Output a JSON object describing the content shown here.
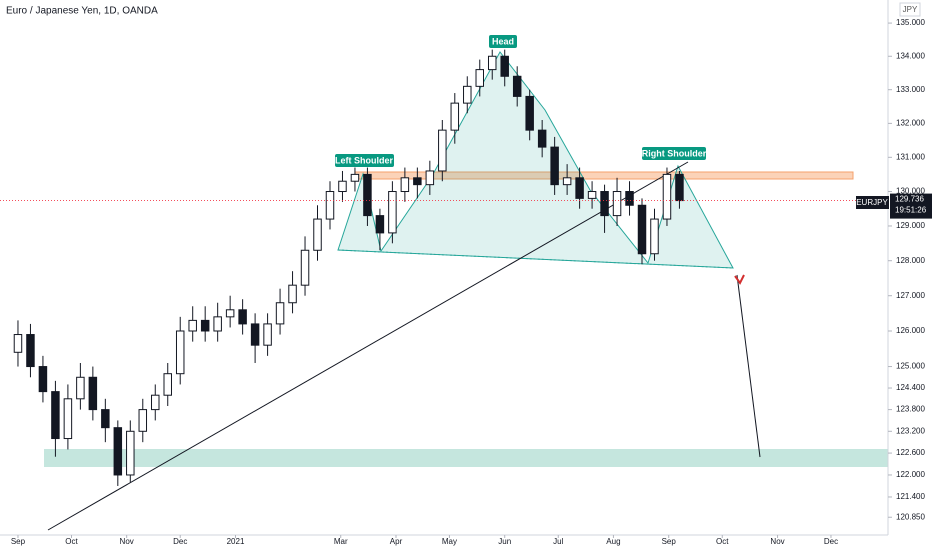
{
  "chart_data": {
    "type": "candlestick",
    "title": "Euro / Japanese Yen, 1D, OANDA",
    "currency": "JPY",
    "symbol": "EURJPY",
    "last_price": 129.736,
    "countdown": "19:51:26",
    "annotations": [
      "Left Shoulder",
      "Head",
      "Right Shoulder"
    ],
    "log_scale": true,
    "up_color": "#131722",
    "down_color": "#131722",
    "last_price_color": "#f23645",
    "x": [
      0,
      1,
      2,
      3,
      4,
      5,
      6,
      7,
      8,
      9,
      10,
      11,
      12,
      13,
      14,
      15,
      16,
      17,
      18,
      19,
      20,
      21,
      22,
      23,
      24,
      25,
      26,
      27,
      28,
      29,
      30,
      31,
      32,
      33,
      34,
      35,
      36,
      37,
      38,
      39,
      40,
      41,
      42,
      43,
      44,
      45,
      46,
      47,
      48,
      49,
      50,
      51,
      52,
      53
    ],
    "open": [
      125.4,
      125.9,
      125.0,
      124.3,
      123.0,
      124.1,
      124.7,
      123.8,
      123.3,
      122.0,
      123.2,
      123.8,
      124.2,
      124.8,
      126.0,
      126.3,
      126.0,
      126.4,
      126.6,
      126.2,
      125.6,
      126.2,
      126.8,
      127.3,
      128.3,
      129.2,
      130.0,
      130.3,
      130.5,
      129.3,
      128.8,
      130.0,
      130.4,
      130.2,
      130.6,
      131.8,
      132.6,
      133.1,
      133.6,
      134.0,
      133.4,
      132.8,
      131.8,
      131.3,
      130.2,
      130.4,
      129.8,
      130.0,
      129.3,
      130.0,
      129.6,
      128.2,
      129.2,
      130.5
    ],
    "high": [
      126.3,
      126.2,
      125.3,
      124.6,
      124.5,
      125.1,
      125.0,
      124.1,
      123.5,
      123.5,
      124.1,
      124.5,
      125.1,
      126.4,
      126.7,
      126.7,
      126.8,
      127.0,
      126.9,
      126.5,
      126.5,
      127.2,
      127.7,
      128.7,
      129.6,
      130.3,
      130.6,
      130.7,
      130.7,
      129.5,
      130.3,
      130.7,
      130.7,
      130.9,
      132.1,
      132.9,
      133.4,
      133.9,
      134.2,
      134.2,
      133.7,
      133.0,
      132.1,
      131.6,
      130.8,
      130.7,
      130.3,
      130.2,
      130.4,
      130.3,
      129.8,
      129.5,
      130.7,
      130.6
    ],
    "low": [
      125.0,
      124.7,
      124.0,
      122.5,
      122.7,
      123.8,
      123.5,
      122.9,
      121.7,
      121.8,
      122.9,
      123.5,
      123.9,
      124.5,
      125.7,
      125.7,
      125.7,
      126.1,
      125.9,
      125.1,
      125.3,
      125.9,
      126.5,
      127.0,
      128.0,
      128.9,
      129.7,
      130.0,
      129.0,
      128.3,
      128.5,
      129.7,
      129.8,
      129.9,
      130.3,
      131.4,
      132.3,
      132.8,
      133.3,
      133.1,
      132.5,
      131.5,
      131.0,
      129.9,
      129.9,
      129.5,
      129.5,
      128.8,
      129.0,
      129.3,
      127.9,
      128.0,
      129.0,
      129.5
    ],
    "close": [
      125.9,
      125.0,
      124.3,
      123.0,
      124.1,
      124.7,
      123.8,
      123.3,
      122.0,
      123.2,
      123.8,
      124.2,
      124.8,
      126.0,
      126.3,
      126.0,
      126.4,
      126.6,
      126.2,
      125.6,
      126.2,
      126.8,
      127.3,
      128.3,
      129.2,
      130.0,
      130.3,
      130.5,
      129.3,
      128.8,
      130.0,
      130.4,
      130.2,
      130.6,
      131.8,
      132.6,
      133.1,
      133.6,
      134.0,
      133.4,
      132.8,
      131.8,
      131.3,
      130.2,
      130.4,
      129.8,
      130.0,
      129.3,
      130.0,
      129.6,
      128.2,
      129.2,
      130.5,
      129.736
    ],
    "xlim": [
      -1.44,
      69.71
    ],
    "xticks": [
      {
        "value": 0,
        "label": "Sep"
      },
      {
        "value": 4.29,
        "label": "Oct"
      },
      {
        "value": 8.71,
        "label": "Nov"
      },
      {
        "value": 13.0,
        "label": "Dec"
      },
      {
        "value": 17.43,
        "label": "2021"
      },
      {
        "value": 25.86,
        "label": "Mar"
      },
      {
        "value": 30.29,
        "label": "Apr"
      },
      {
        "value": 34.57,
        "label": "May"
      },
      {
        "value": 39.0,
        "label": "Jun"
      },
      {
        "value": 43.29,
        "label": "Jul"
      },
      {
        "value": 47.71,
        "label": "Aug"
      },
      {
        "value": 52.14,
        "label": "Sep"
      },
      {
        "value": 56.43,
        "label": "Oct"
      },
      {
        "value": 60.86,
        "label": "Nov"
      },
      {
        "value": 65.14,
        "label": "Dec"
      }
    ],
    "ylim": [
      120.37,
      135.7
    ],
    "yticks": [
      {
        "value": 135,
        "label": "135.000"
      },
      {
        "value": 134,
        "label": "134.000"
      },
      {
        "value": 133,
        "label": "133.000"
      },
      {
        "value": 132,
        "label": "132.000"
      },
      {
        "value": 131,
        "label": "131.000"
      },
      {
        "value": 130,
        "label": "130.000"
      },
      {
        "value": 129,
        "label": "129.000"
      },
      {
        "value": 128,
        "label": "128.000"
      },
      {
        "value": 127,
        "label": "127.000"
      },
      {
        "value": 126,
        "label": "126.000"
      },
      {
        "value": 125,
        "label": "125.000"
      },
      {
        "value": 124.4,
        "label": "124.400"
      },
      {
        "value": 123.8,
        "label": "123.800"
      },
      {
        "value": 123.2,
        "label": "123.200"
      },
      {
        "value": 122.6,
        "label": "122.600"
      },
      {
        "value": 122,
        "label": "122.000"
      },
      {
        "value": 121.4,
        "label": "121.400"
      },
      {
        "value": 120.85,
        "label": "120.850"
      }
    ]
  }
}
